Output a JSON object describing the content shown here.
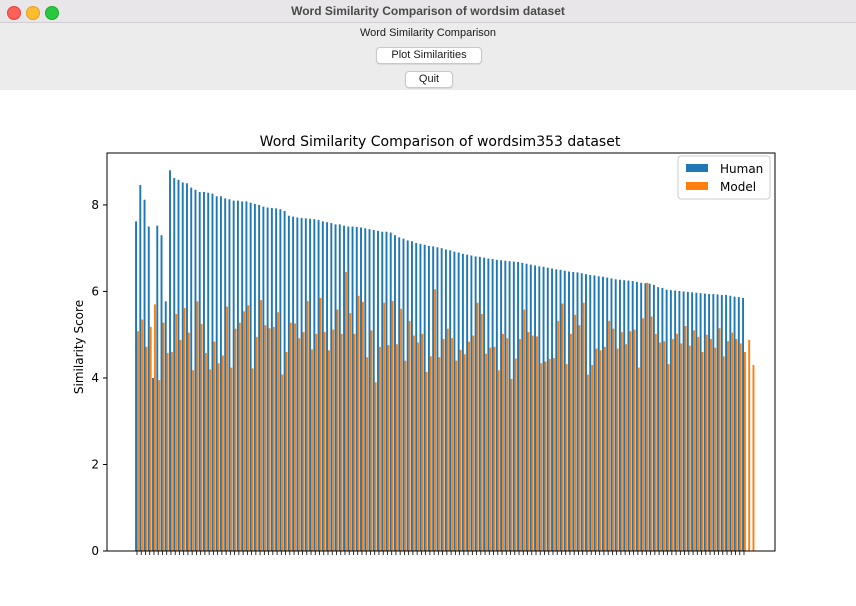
{
  "window": {
    "title": "Word Similarity Comparison of wordsim dataset"
  },
  "toolbar": {
    "label": "Word Similarity Comparison",
    "plot_button": "Plot Similarities",
    "quit_button": "Quit"
  },
  "chart_data": {
    "type": "bar",
    "title": "Word Similarity Comparison of wordsim353 dataset",
    "xlabel": "",
    "ylabel": "Similarity Score",
    "ylim": [
      0,
      9.2
    ],
    "yticks": [
      0,
      2,
      4,
      6,
      8
    ],
    "legend": "top-right",
    "grid": false,
    "categories_note": "",
    "series": [
      {
        "name": "Human",
        "color": "#1f77b4",
        "values": [
          7.62,
          8.46,
          8.12,
          7.5,
          4.0,
          7.52,
          7.3,
          5.77,
          8.8,
          8.62,
          8.58,
          8.52,
          8.5,
          8.4,
          8.35,
          8.3,
          8.3,
          8.28,
          8.26,
          8.2,
          8.2,
          8.15,
          8.13,
          8.1,
          8.1,
          8.08,
          8.08,
          8.05,
          8.02,
          8.0,
          7.96,
          7.94,
          7.93,
          7.92,
          7.9,
          7.86,
          7.75,
          7.73,
          7.71,
          7.7,
          7.69,
          7.68,
          7.67,
          7.65,
          7.62,
          7.6,
          7.58,
          7.55,
          7.55,
          7.52,
          7.5,
          7.5,
          7.49,
          7.48,
          7.46,
          7.44,
          7.42,
          7.4,
          7.38,
          7.38,
          7.36,
          7.3,
          7.25,
          7.22,
          7.18,
          7.16,
          7.12,
          7.1,
          7.08,
          7.05,
          7.04,
          7.02,
          7.0,
          6.97,
          6.95,
          6.92,
          6.9,
          6.87,
          6.85,
          6.83,
          6.81,
          6.8,
          6.78,
          6.76,
          6.75,
          6.73,
          6.72,
          6.71,
          6.7,
          6.69,
          6.68,
          6.66,
          6.64,
          6.62,
          6.6,
          6.58,
          6.57,
          6.55,
          6.53,
          6.51,
          6.5,
          6.48,
          6.46,
          6.45,
          6.44,
          6.42,
          6.4,
          6.38,
          6.37,
          6.35,
          6.34,
          6.32,
          6.3,
          6.28,
          6.27,
          6.26,
          6.25,
          6.24,
          6.22,
          6.2,
          6.19,
          6.18,
          6.15,
          6.1,
          6.08,
          6.04,
          6.03,
          6.02,
          6.01,
          6.0,
          5.99,
          5.98,
          5.97,
          5.96,
          5.95,
          5.94,
          5.94,
          5.93,
          5.92,
          5.92,
          5.9,
          5.88,
          5.87,
          5.85
        ]
      },
      {
        "name": "Model",
        "color": "#ff7f0e",
        "values": [
          5.08,
          5.35,
          4.72,
          5.18,
          5.7,
          3.95,
          5.28,
          4.58,
          4.6,
          5.48,
          4.88,
          5.62,
          5.05,
          4.18,
          5.77,
          5.25,
          4.58,
          4.2,
          4.84,
          4.34,
          4.52,
          5.65,
          4.24,
          5.14,
          5.28,
          5.54,
          5.68,
          4.22,
          4.95,
          5.8,
          5.22,
          5.15,
          5.18,
          5.52,
          4.08,
          4.6,
          5.28,
          5.26,
          4.92,
          5.06,
          5.78,
          4.66,
          5.02,
          5.85,
          5.06,
          4.64,
          5.12,
          5.58,
          5.02,
          6.45,
          5.5,
          5.02,
          5.9,
          5.76,
          4.48,
          5.1,
          3.9,
          4.72,
          5.74,
          4.76,
          5.78,
          4.78,
          5.6,
          4.4,
          5.32,
          4.98,
          4.82,
          5.02,
          4.14,
          4.5,
          6.05,
          4.48,
          4.9,
          5.14,
          4.92,
          4.4,
          4.65,
          4.55,
          4.84,
          4.98,
          5.74,
          5.48,
          4.56,
          4.7,
          4.72,
          4.18,
          5.02,
          4.92,
          3.98,
          4.45,
          4.9,
          5.58,
          5.06,
          4.98,
          4.96,
          4.34,
          4.38,
          4.44,
          4.46,
          5.32,
          5.72,
          4.32,
          5.02,
          5.46,
          5.22,
          5.74,
          4.08,
          4.3,
          4.68,
          4.64,
          4.72,
          5.32,
          5.14,
          4.68,
          5.06,
          4.78,
          5.08,
          5.12,
          4.24,
          5.38,
          6.2,
          5.42,
          5.02,
          4.82,
          4.85,
          4.32,
          4.9,
          5.02,
          4.8,
          5.2,
          4.75,
          5.1,
          4.95,
          4.6,
          5.0,
          4.9,
          4.7,
          5.15,
          4.5,
          4.85,
          5.05,
          4.9,
          4.8,
          4.6,
          4.88,
          4.3
        ]
      }
    ]
  }
}
